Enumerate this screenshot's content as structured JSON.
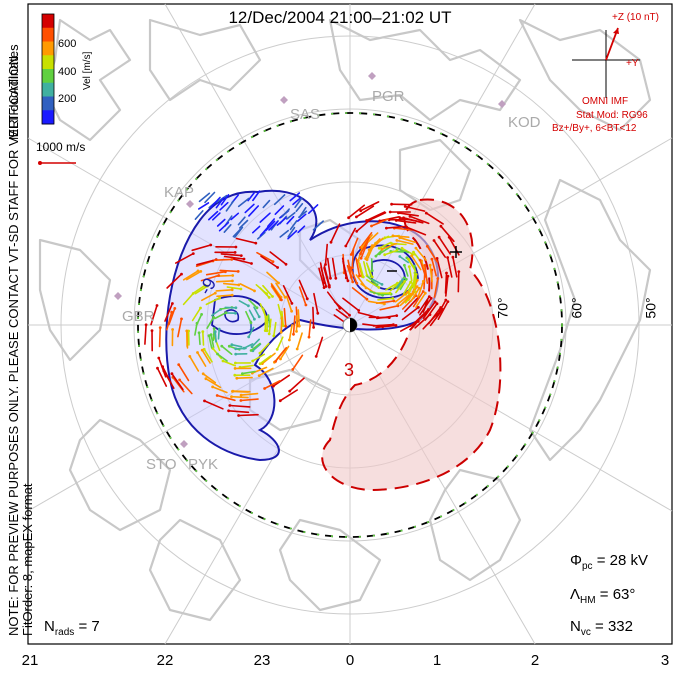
{
  "title": "12/Dec/2004 21:00–21:02 UT",
  "colorbar": {
    "label": "Vel [m/s]",
    "ticks": [
      "600",
      "400",
      "200"
    ],
    "colors": [
      "#d40000",
      "#ff5000",
      "#ff9a00",
      "#c8e000",
      "#60d040",
      "#40b0a0",
      "#3060c0",
      "#1a1aff"
    ]
  },
  "side_labels": {
    "coords": "MLT coordinates",
    "note": "NOTE: FOR PREVIEW PURPOSES ONLY. PLEASE CONTACT VT-SD STAFF FOR VERIFICATION.",
    "fit": "FitOrder: 8, mapEX format"
  },
  "scale": {
    "text": "1000 m/s"
  },
  "imf": {
    "z_label": "+Z (10 nT)",
    "y_label": "+Y",
    "omni": "OMNI IMF",
    "model": "Stat Mod: RG96",
    "cond": "Bz+/By+, 6<BT<12"
  },
  "stations": [
    "SAS",
    "PGR",
    "KOD",
    "KAP",
    "GBR",
    "STO",
    "PYK"
  ],
  "latitudes": [
    "70°",
    "60°",
    "50°"
  ],
  "contours": {
    "neg_label": "-9",
    "pos_label": "3"
  },
  "stats": {
    "phi_sym": "Φ",
    "phi_sub": "pc",
    "phi_val": "= 28 kV",
    "lam_sym": "Λ",
    "lam_sub": "HM",
    "lam_val": "= 63°",
    "nvc_sym": "N",
    "nvc_sub": "vc",
    "nvc_val": "= 332",
    "nrads_sym": "N",
    "nrads_sub": "rads",
    "nrads_val": "= 7"
  },
  "mlt_ticks": [
    "21",
    "22",
    "23",
    "0",
    "1",
    "2",
    "3"
  ]
}
